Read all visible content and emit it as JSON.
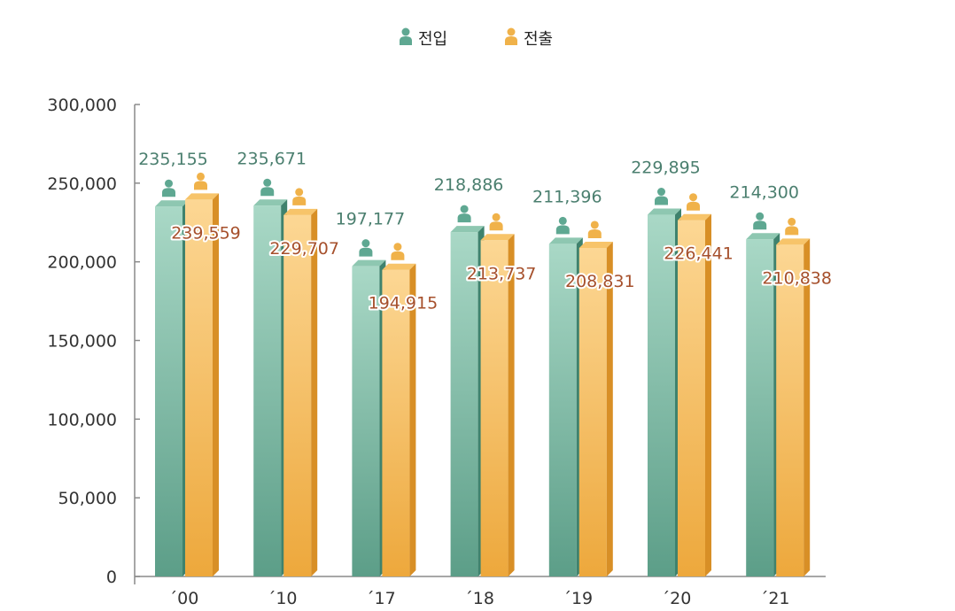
{
  "chart_data": {
    "type": "bar",
    "title": "",
    "xlabel": "",
    "ylabel": "",
    "categories": [
      "´00",
      "´10",
      "´17",
      "´18",
      "´19",
      "´20",
      "´21"
    ],
    "ylim": [
      0,
      300000
    ],
    "yticks": [
      "0",
      "50,000",
      "100,000",
      "150,000",
      "200,000",
      "250,000",
      "300,000"
    ],
    "legend_position": "top-center",
    "series": [
      {
        "name": "전입",
        "color": "#5fa892",
        "values": [
          235155,
          235671,
          197177,
          218886,
          211396,
          229895,
          214300
        ],
        "labels": [
          "235,155",
          "235,671",
          "197,177",
          "218,886",
          "211,396",
          "229,895",
          "214,300"
        ]
      },
      {
        "name": "전출",
        "color": "#f0b24a",
        "values": [
          239559,
          229707,
          194915,
          213737,
          208831,
          226441,
          210838
        ],
        "labels": [
          "239,559",
          "229,707",
          "194,915",
          "213,737",
          "208,831",
          "226,441",
          "210,838"
        ]
      }
    ]
  },
  "legend": {
    "in_label": "전입",
    "out_label": "전출"
  }
}
